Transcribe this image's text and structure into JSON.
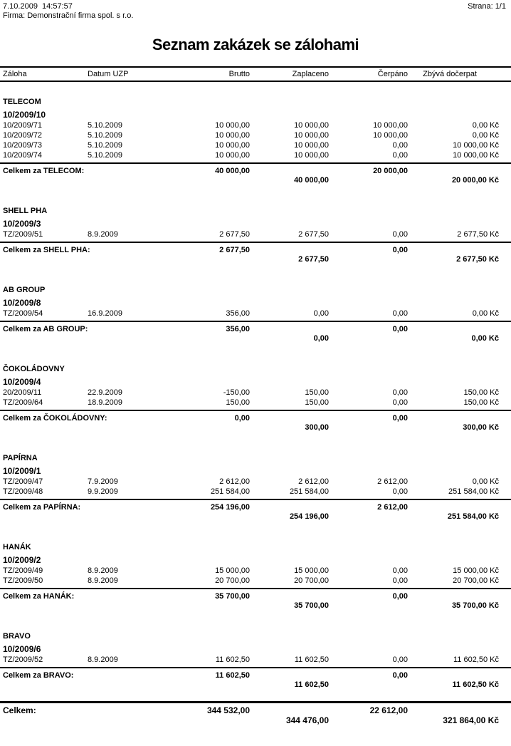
{
  "header": {
    "datetime": "7.10.2009  14:57:57",
    "page": "Strana: 1/1",
    "company": "Firma: Demonstrační firma spol. s r.o.",
    "title": "Seznam zakázek se zálohami"
  },
  "columns": [
    "Záloha",
    "Datum UZP",
    "Brutto",
    "Zaplaceno",
    "Čerpáno",
    "Zbývá dočerpat"
  ],
  "currency_suffix": "Kč",
  "colors": {
    "text": "#000000",
    "background": "#ffffff",
    "rule": "#000000"
  },
  "groups": [
    {
      "customer": "TELECOM",
      "order": "10/2009/10",
      "rows": [
        {
          "zaloha": "10/2009/71",
          "datum": "5.10.2009",
          "brutto": "10 000,00",
          "zaplaceno": "10 000,00",
          "cerpano": "10 000,00",
          "zbyva": "0,00 Kč"
        },
        {
          "zaloha": "10/2009/72",
          "datum": "5.10.2009",
          "brutto": "10 000,00",
          "zaplaceno": "10 000,00",
          "cerpano": "10 000,00",
          "zbyva": "0,00 Kč"
        },
        {
          "zaloha": "10/2009/73",
          "datum": "5.10.2009",
          "brutto": "10 000,00",
          "zaplaceno": "10 000,00",
          "cerpano": "0,00",
          "zbyva": "10 000,00 Kč"
        },
        {
          "zaloha": "10/2009/74",
          "datum": "5.10.2009",
          "brutto": "10 000,00",
          "zaplaceno": "10 000,00",
          "cerpano": "0,00",
          "zbyva": "10 000,00 Kč"
        }
      ],
      "total": {
        "label": "Celkem za TELECOM:",
        "brutto": "40 000,00",
        "cerpano": "20 000,00",
        "zaplaceno": "40 000,00",
        "zbyva": "20 000,00 Kč"
      }
    },
    {
      "customer": "SHELL PHA",
      "order": "10/2009/3",
      "rows": [
        {
          "zaloha": "TZ/2009/51",
          "datum": "8.9.2009",
          "brutto": "2 677,50",
          "zaplaceno": "2 677,50",
          "cerpano": "0,00",
          "zbyva": "2 677,50 Kč"
        }
      ],
      "total": {
        "label": "Celkem za SHELL PHA:",
        "brutto": "2 677,50",
        "cerpano": "0,00",
        "zaplaceno": "2 677,50",
        "zbyva": "2 677,50 Kč"
      }
    },
    {
      "customer": "AB GROUP",
      "order": "10/2009/8",
      "rows": [
        {
          "zaloha": "TZ/2009/54",
          "datum": "16.9.2009",
          "brutto": "356,00",
          "zaplaceno": "0,00",
          "cerpano": "0,00",
          "zbyva": "0,00 Kč"
        }
      ],
      "total": {
        "label": "Celkem za AB GROUP:",
        "brutto": "356,00",
        "cerpano": "0,00",
        "zaplaceno": "0,00",
        "zbyva": "0,00 Kč"
      }
    },
    {
      "customer": "ČOKOLÁDOVNY",
      "order": "10/2009/4",
      "rows": [
        {
          "zaloha": "20/2009/11",
          "datum": "22.9.2009",
          "brutto": "-150,00",
          "zaplaceno": "150,00",
          "cerpano": "0,00",
          "zbyva": "150,00 Kč"
        },
        {
          "zaloha": "TZ/2009/64",
          "datum": "18.9.2009",
          "brutto": "150,00",
          "zaplaceno": "150,00",
          "cerpano": "0,00",
          "zbyva": "150,00 Kč"
        }
      ],
      "total": {
        "label": "Celkem za ČOKOLÁDOVNY:",
        "brutto": "0,00",
        "cerpano": "0,00",
        "zaplaceno": "300,00",
        "zbyva": "300,00 Kč"
      }
    },
    {
      "customer": "PAPÍRNA",
      "order": "10/2009/1",
      "rows": [
        {
          "zaloha": "TZ/2009/47",
          "datum": "7.9.2009",
          "brutto": "2 612,00",
          "zaplaceno": "2 612,00",
          "cerpano": "2 612,00",
          "zbyva": "0,00 Kč"
        },
        {
          "zaloha": "TZ/2009/48",
          "datum": "9.9.2009",
          "brutto": "251 584,00",
          "zaplaceno": "251 584,00",
          "cerpano": "0,00",
          "zbyva": "251 584,00 Kč"
        }
      ],
      "total": {
        "label": "Celkem za PAPÍRNA:",
        "brutto": "254 196,00",
        "cerpano": "2 612,00",
        "zaplaceno": "254 196,00",
        "zbyva": "251 584,00 Kč"
      }
    },
    {
      "customer": "HANÁK",
      "order": "10/2009/2",
      "rows": [
        {
          "zaloha": "TZ/2009/49",
          "datum": "8.9.2009",
          "brutto": "15 000,00",
          "zaplaceno": "15 000,00",
          "cerpano": "0,00",
          "zbyva": "15 000,00 Kč"
        },
        {
          "zaloha": "TZ/2009/50",
          "datum": "8.9.2009",
          "brutto": "20 700,00",
          "zaplaceno": "20 700,00",
          "cerpano": "0,00",
          "zbyva": "20 700,00 Kč"
        }
      ],
      "total": {
        "label": "Celkem za HANÁK:",
        "brutto": "35 700,00",
        "cerpano": "0,00",
        "zaplaceno": "35 700,00",
        "zbyva": "35 700,00 Kč"
      }
    },
    {
      "customer": "BRAVO",
      "order": "10/2009/6",
      "rows": [
        {
          "zaloha": "TZ/2009/52",
          "datum": "8.9.2009",
          "brutto": "11 602,50",
          "zaplaceno": "11 602,50",
          "cerpano": "0,00",
          "zbyva": "11 602,50 Kč"
        }
      ],
      "total": {
        "label": "Celkem za BRAVO:",
        "brutto": "11 602,50",
        "cerpano": "0,00",
        "zaplaceno": "11 602,50",
        "zbyva": "11 602,50 Kč"
      }
    }
  ],
  "grand_total": {
    "label": "Celkem:",
    "brutto": "344 532,00",
    "cerpano": "22 612,00",
    "zaplaceno": "344 476,00",
    "zbyva": "321 864,00 Kč"
  }
}
